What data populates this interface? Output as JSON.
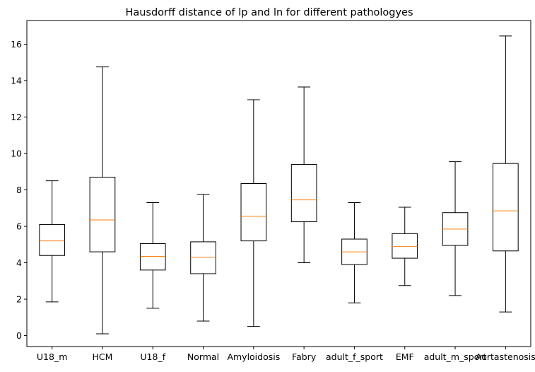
{
  "chart_data": {
    "type": "boxplot",
    "title": "Hausdorff distance of lp and ln for different pathologyes",
    "xlabel": "",
    "ylabel": "",
    "ylim": [
      -0.6,
      17.3
    ],
    "yticks": [
      0,
      2,
      4,
      6,
      8,
      10,
      12,
      14,
      16
    ],
    "categories": [
      "U18_m",
      "HCM",
      "U18_f",
      "Normal",
      "Amyloidosis",
      "Fabry",
      "adult_f_sport",
      "EMF",
      "adult_m_sport",
      "Aortastenosis"
    ],
    "boxes": [
      {
        "whisker_low": 1.85,
        "q1": 4.4,
        "median": 5.2,
        "q3": 6.1,
        "whisker_high": 8.5
      },
      {
        "whisker_low": 0.1,
        "q1": 4.6,
        "median": 6.35,
        "q3": 8.7,
        "whisker_high": 14.75
      },
      {
        "whisker_low": 1.5,
        "q1": 3.6,
        "median": 4.35,
        "q3": 5.05,
        "whisker_high": 7.3
      },
      {
        "whisker_low": 0.8,
        "q1": 3.4,
        "median": 4.3,
        "q3": 5.15,
        "whisker_high": 7.75
      },
      {
        "whisker_low": 0.5,
        "q1": 5.2,
        "median": 6.55,
        "q3": 8.35,
        "whisker_high": 12.95
      },
      {
        "whisker_low": 4.0,
        "q1": 6.25,
        "median": 7.45,
        "q3": 9.4,
        "whisker_high": 13.65
      },
      {
        "whisker_low": 1.8,
        "q1": 3.9,
        "median": 4.6,
        "q3": 5.3,
        "whisker_high": 7.3
      },
      {
        "whisker_low": 2.75,
        "q1": 4.25,
        "median": 4.9,
        "q3": 5.6,
        "whisker_high": 7.05
      },
      {
        "whisker_low": 2.2,
        "q1": 4.95,
        "median": 5.85,
        "q3": 6.75,
        "whisker_high": 9.55
      },
      {
        "whisker_low": 1.3,
        "q1": 4.65,
        "median": 6.85,
        "q3": 9.45,
        "whisker_high": 16.45
      }
    ],
    "colors": {
      "box": "#000000",
      "median": "#ff7f0e",
      "background": "#ffffff"
    },
    "grid": false,
    "legend": "none"
  }
}
